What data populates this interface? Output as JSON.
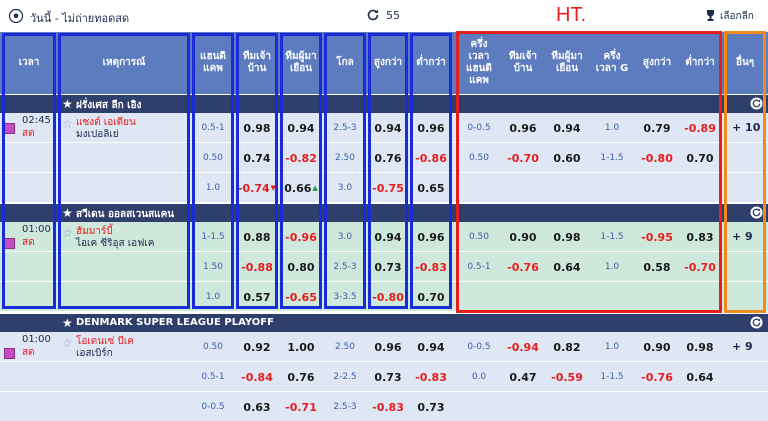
{
  "topbar": {
    "title": "วันนี้ - ไม่ถ่ายทอดสด",
    "refresh_count": "55",
    "ht_label": "HT.",
    "league_select": "เลือกลีก"
  },
  "header": {
    "time": "เวลา",
    "event": "เหตุการณ์",
    "handicap": "แฮนดิ\nแคพ",
    "home": "ทีมเจ้า\nบ้าน",
    "away": "ทีมผู้มา\nเยือน",
    "goal": "โกล",
    "over": "สูงกว่า",
    "under": "ต่ำกว่า",
    "ht_handicap": "ครึ่ง\nเวลา\nแฮนดิ\nแคพ",
    "ht_home": "ทีมเจ้า\nบ้าน",
    "ht_away": "ทีมผู้มา\nเยือน",
    "ht_goal": "ครึ่ง\nเวลา G",
    "ht_over": "สูงกว่า",
    "ht_under": "ต่ำกว่า",
    "other": "อื่นๆ"
  },
  "leagues": [
    {
      "name": "ฝรั่งเศส ลีก เอิง",
      "time": "02:45",
      "status": "สด",
      "home_team": "แซงต์ เอเตียน",
      "away_team": "มงเปอลิเย่",
      "more": "+ 10",
      "rows": [
        {
          "hdp": "0.5-1",
          "home": "0.98",
          "away": "0.94",
          "goal": "2.5-3",
          "over": "0.94",
          "under": "0.96",
          "ht_hdp": "0-0.5",
          "ht_home": "0.96",
          "ht_away": "0.94",
          "ht_goal": "1.0",
          "ht_over": "0.79",
          "ht_under": "-0.89"
        },
        {
          "hdp": "0.50",
          "home": "0.74",
          "away": "-0.82",
          "goal": "2.50",
          "over": "0.76",
          "under": "-0.86",
          "ht_hdp": "0.50",
          "ht_home": "-0.70",
          "ht_away": "0.60",
          "ht_goal": "1-1.5",
          "ht_over": "-0.80",
          "ht_under": "0.70"
        },
        {
          "hdp": "1.0",
          "home": "-0.74",
          "away": "0.66",
          "goal": "3.0",
          "over": "-0.75",
          "under": "0.65",
          "ht_hdp": "",
          "ht_home": "",
          "ht_away": "",
          "ht_goal": "",
          "ht_over": "",
          "ht_under": ""
        }
      ]
    },
    {
      "name": "สวีเดน ออลสเวนสแคน",
      "time": "01:00",
      "status": "สด",
      "home_team": "ฮัมมาร์บี้",
      "away_team": "ไอเค ซีริอุส เอฟเค",
      "more": "+ 9",
      "rows": [
        {
          "hdp": "1-1.5",
          "home": "0.88",
          "away": "-0.96",
          "goal": "3.0",
          "over": "0.94",
          "under": "0.96",
          "ht_hdp": "0.50",
          "ht_home": "0.90",
          "ht_away": "0.98",
          "ht_goal": "1-1.5",
          "ht_over": "-0.95",
          "ht_under": "0.83"
        },
        {
          "hdp": "1.50",
          "home": "-0.88",
          "away": "0.80",
          "goal": "2.5-3",
          "over": "0.73",
          "under": "-0.83",
          "ht_hdp": "0.5-1",
          "ht_home": "-0.76",
          "ht_away": "0.64",
          "ht_goal": "1.0",
          "ht_over": "0.58",
          "ht_under": "-0.70"
        },
        {
          "hdp": "1.0",
          "home": "0.57",
          "away": "-0.65",
          "goal": "3-3.5",
          "over": "-0.80",
          "under": "0.70",
          "ht_hdp": "",
          "ht_home": "",
          "ht_away": "",
          "ht_goal": "",
          "ht_over": "",
          "ht_under": ""
        }
      ]
    },
    {
      "name": "DENMARK SUPER LEAGUE PLAYOFF",
      "time": "01:00",
      "status": "สด",
      "home_team": "โอเดนเซ่ บีเค",
      "away_team": "เอสเบิร์ก",
      "more": "+ 9",
      "rows": [
        {
          "hdp": "0.50",
          "home": "0.92",
          "away": "1.00",
          "goal": "2.50",
          "over": "0.96",
          "under": "0.94",
          "ht_hdp": "0-0.5",
          "ht_home": "-0.94",
          "ht_away": "0.82",
          "ht_goal": "1.0",
          "ht_over": "0.90",
          "ht_under": "0.98"
        },
        {
          "hdp": "0.5-1",
          "home": "-0.84",
          "away": "0.76",
          "goal": "2-2.5",
          "over": "0.73",
          "under": "-0.83",
          "ht_hdp": "0.0",
          "ht_home": "0.47",
          "ht_away": "-0.59",
          "ht_goal": "1-1.5",
          "ht_over": "-0.76",
          "ht_under": "0.64"
        },
        {
          "hdp": "0-0.5",
          "home": "0.63",
          "away": "-0.71",
          "goal": "2.5-3",
          "over": "-0.83",
          "under": "0.73",
          "ht_hdp": "",
          "ht_home": "",
          "ht_away": "",
          "ht_goal": "",
          "ht_over": "",
          "ht_under": ""
        }
      ]
    }
  ],
  "colors": {
    "header_bg": "#5d7bbf",
    "league_bar": "#2f3f6b",
    "row_blue": "#dfe7f5",
    "row_green": "#cfe8dc",
    "annot_blue": "#1a2bd8",
    "annot_red": "#e51d1d",
    "annot_orange": "#f08a1a",
    "negative": "#e51d1d"
  },
  "icons": {
    "sport": "soccer-ball-icon",
    "refresh": "refresh-icon",
    "trophy": "trophy-icon",
    "star": "star-icon",
    "stats": "stats-icon",
    "arrow_down": "arrow-down-icon",
    "arrow_up": "arrow-up-icon"
  }
}
